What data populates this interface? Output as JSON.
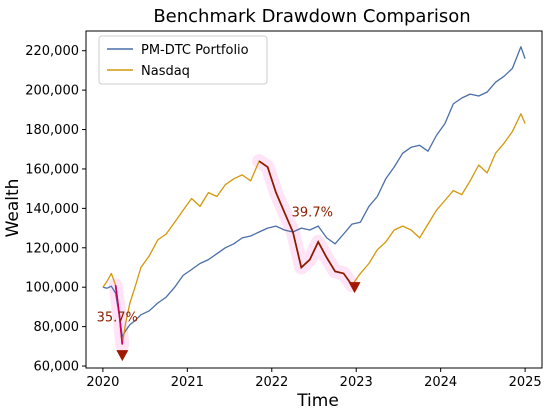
{
  "chart_data": {
    "type": "line",
    "title": "Benchmark Drawdown Comparison",
    "xlabel": "Time",
    "ylabel": "Wealth",
    "xlim": [
      2019.8,
      2025.2
    ],
    "ylim": [
      59000,
      230000
    ],
    "x_ticks": [
      2020,
      2021,
      2022,
      2023,
      2024,
      2025
    ],
    "x_tick_labels": [
      "2020",
      "2021",
      "2022",
      "2023",
      "2024",
      "2025"
    ],
    "y_ticks": [
      60000,
      80000,
      100000,
      120000,
      140000,
      160000,
      180000,
      200000,
      220000
    ],
    "y_tick_labels": [
      "60,000",
      "80,000",
      "100,000",
      "120,000",
      "140,000",
      "160,000",
      "180,000",
      "200,000",
      "220,000"
    ],
    "grid": false,
    "legend_position": "top-left",
    "series": [
      {
        "name": "PM-DTC Portfolio",
        "color": "#4a6fa8",
        "points": [
          [
            2020.0,
            100000
          ],
          [
            2020.05,
            99500
          ],
          [
            2020.1,
            100500
          ],
          [
            2020.15,
            97000
          ],
          [
            2020.2,
            84000
          ],
          [
            2020.23,
            75000
          ],
          [
            2020.27,
            78000
          ],
          [
            2020.32,
            81000
          ],
          [
            2020.38,
            83000
          ],
          [
            2020.45,
            86000
          ],
          [
            2020.55,
            88000
          ],
          [
            2020.65,
            92000
          ],
          [
            2020.75,
            95000
          ],
          [
            2020.85,
            100000
          ],
          [
            2020.95,
            106000
          ],
          [
            2021.05,
            109000
          ],
          [
            2021.15,
            112000
          ],
          [
            2021.25,
            114000
          ],
          [
            2021.35,
            117000
          ],
          [
            2021.45,
            120000
          ],
          [
            2021.55,
            122000
          ],
          [
            2021.65,
            125000
          ],
          [
            2021.75,
            126000
          ],
          [
            2021.85,
            128000
          ],
          [
            2021.95,
            130000
          ],
          [
            2022.05,
            131000
          ],
          [
            2022.15,
            129000
          ],
          [
            2022.25,
            128000
          ],
          [
            2022.35,
            130000
          ],
          [
            2022.45,
            129000
          ],
          [
            2022.55,
            131000
          ],
          [
            2022.65,
            125000
          ],
          [
            2022.75,
            122000
          ],
          [
            2022.85,
            127000
          ],
          [
            2022.95,
            132000
          ],
          [
            2023.05,
            133000
          ],
          [
            2023.15,
            141000
          ],
          [
            2023.25,
            146000
          ],
          [
            2023.35,
            155000
          ],
          [
            2023.45,
            161000
          ],
          [
            2023.55,
            168000
          ],
          [
            2023.65,
            171000
          ],
          [
            2023.75,
            172000
          ],
          [
            2023.85,
            169000
          ],
          [
            2023.95,
            177000
          ],
          [
            2024.05,
            183000
          ],
          [
            2024.15,
            193000
          ],
          [
            2024.25,
            196000
          ],
          [
            2024.35,
            198000
          ],
          [
            2024.45,
            197000
          ],
          [
            2024.55,
            199000
          ],
          [
            2024.65,
            204000
          ],
          [
            2024.75,
            207000
          ],
          [
            2024.85,
            211000
          ],
          [
            2024.95,
            222000
          ],
          [
            2025.0,
            216000
          ]
        ]
      },
      {
        "name": "Nasdaq",
        "color": "#d4980c",
        "points": [
          [
            2020.0,
            100000
          ],
          [
            2020.05,
            103000
          ],
          [
            2020.1,
            107000
          ],
          [
            2020.15,
            101000
          ],
          [
            2020.2,
            84000
          ],
          [
            2020.23,
            71000
          ],
          [
            2020.27,
            82000
          ],
          [
            2020.32,
            92000
          ],
          [
            2020.38,
            100000
          ],
          [
            2020.45,
            110000
          ],
          [
            2020.55,
            116000
          ],
          [
            2020.65,
            124000
          ],
          [
            2020.75,
            127000
          ],
          [
            2020.85,
            133000
          ],
          [
            2020.95,
            139000
          ],
          [
            2021.05,
            145000
          ],
          [
            2021.15,
            141000
          ],
          [
            2021.25,
            148000
          ],
          [
            2021.35,
            146000
          ],
          [
            2021.45,
            152000
          ],
          [
            2021.55,
            155000
          ],
          [
            2021.65,
            157000
          ],
          [
            2021.75,
            154000
          ],
          [
            2021.85,
            164000
          ],
          [
            2021.95,
            161000
          ],
          [
            2022.05,
            148000
          ],
          [
            2022.15,
            138000
          ],
          [
            2022.25,
            128000
          ],
          [
            2022.35,
            110000
          ],
          [
            2022.45,
            114000
          ],
          [
            2022.55,
            123000
          ],
          [
            2022.65,
            115000
          ],
          [
            2022.75,
            108000
          ],
          [
            2022.85,
            107000
          ],
          [
            2022.95,
            101000
          ],
          [
            2023.05,
            107000
          ],
          [
            2023.15,
            112000
          ],
          [
            2023.25,
            119000
          ],
          [
            2023.35,
            123000
          ],
          [
            2023.45,
            129000
          ],
          [
            2023.55,
            131000
          ],
          [
            2023.65,
            129000
          ],
          [
            2023.75,
            125000
          ],
          [
            2023.85,
            132000
          ],
          [
            2023.95,
            139000
          ],
          [
            2024.05,
            144000
          ],
          [
            2024.15,
            149000
          ],
          [
            2024.25,
            147000
          ],
          [
            2024.35,
            154000
          ],
          [
            2024.45,
            162000
          ],
          [
            2024.55,
            158000
          ],
          [
            2024.65,
            168000
          ],
          [
            2024.75,
            173000
          ],
          [
            2024.85,
            179000
          ],
          [
            2024.95,
            188000
          ],
          [
            2025.0,
            183000
          ]
        ]
      }
    ],
    "drawdown_regions": [
      {
        "x_start": 2020.13,
        "x_end": 2020.25,
        "color": "#cc0066"
      },
      {
        "x_start": 2021.85,
        "x_end": 2023.0,
        "color": "#8b1a00"
      }
    ],
    "annotations": [
      {
        "text": "35.7%",
        "x": 2020.17,
        "y": 82500,
        "color": "#8b2000"
      },
      {
        "text": "39.7%",
        "x": 2022.48,
        "y": 136000,
        "color": "#8b2000"
      }
    ],
    "markers": [
      {
        "x": 2020.23,
        "y": 65000,
        "shape": "triangle-down",
        "color": "#a01800"
      },
      {
        "x": 2022.98,
        "y": 99500,
        "shape": "triangle-down",
        "color": "#a01800"
      }
    ]
  }
}
